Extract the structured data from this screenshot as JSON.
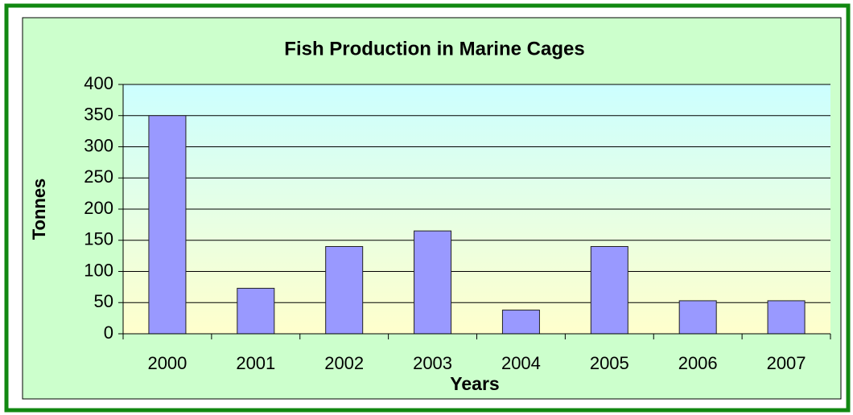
{
  "chart_data": {
    "type": "bar",
    "title": "Fish Production in Marine Cages",
    "x_label": "Years",
    "y_label": "Tonnes",
    "categories": [
      "2000",
      "2001",
      "2002",
      "2003",
      "2004",
      "2005",
      "2006",
      "2007"
    ],
    "values": [
      350,
      73,
      140,
      165,
      38,
      140,
      53,
      53
    ],
    "color": "#9999ff",
    "ylim": [
      0,
      400
    ],
    "yticks": [
      0,
      50,
      100,
      150,
      200,
      250,
      300,
      350,
      400
    ],
    "grid": true
  }
}
